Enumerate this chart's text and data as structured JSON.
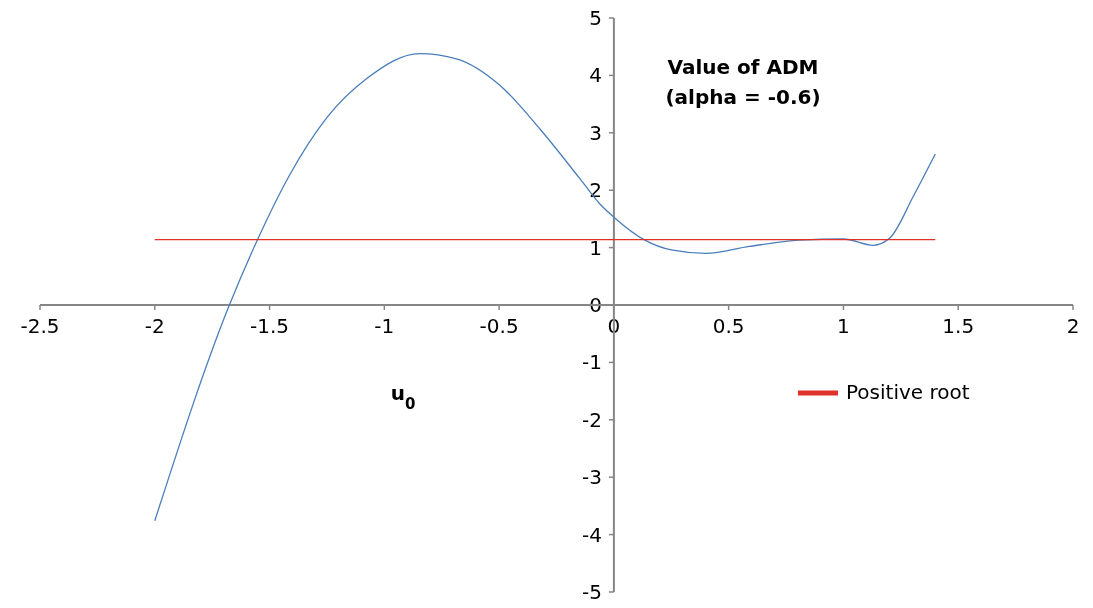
{
  "chart_data": {
    "type": "line",
    "xlabel": "u$_{0}$",
    "ylabel": "Value of ADM\n(alpha = -0.6)",
    "xlim": [
      -2.5,
      2
    ],
    "xticks": [
      -2.5,
      -2,
      -1.5,
      -1,
      -0.5,
      0,
      0.5,
      1,
      1.5,
      2
    ],
    "ylim": [
      -5,
      5
    ],
    "yticks": [
      -5,
      -4,
      -3,
      -2,
      -1,
      0,
      1,
      2,
      3,
      4,
      5
    ],
    "grid": false,
    "legend": "right",
    "marker": "none",
    "line_style": "solid",
    "series": [
      {
        "color": "#4a7ebb",
        "x": [
          -2,
          -1.675,
          -1.551,
          -1.413,
          -1.253,
          -1.078,
          -0.846,
          -0.686,
          -0.497,
          -0.323,
          -0.148,
          -0.061,
          0,
          0.135,
          0.25,
          0.401,
          0.59,
          0.809,
          1.0,
          1.13,
          1.203,
          1.305,
          1.4
        ],
        "values": [
          -3.76,
          0,
          1.15,
          2.26,
          3.25,
          3.94,
          4.38,
          4.29,
          3.83,
          3.07,
          2.2,
          1.76,
          1.53,
          1.13,
          0.96,
          0.9,
          1.02,
          1.13,
          1.15,
          1.04,
          1.17,
          1.9,
          2.63
        ]
      },
      {
        "name": "Positive root",
        "color": "#e0302a",
        "x": [
          -2,
          1.4
        ],
        "values": [
          1.14,
          1.14
        ]
      }
    ]
  }
}
